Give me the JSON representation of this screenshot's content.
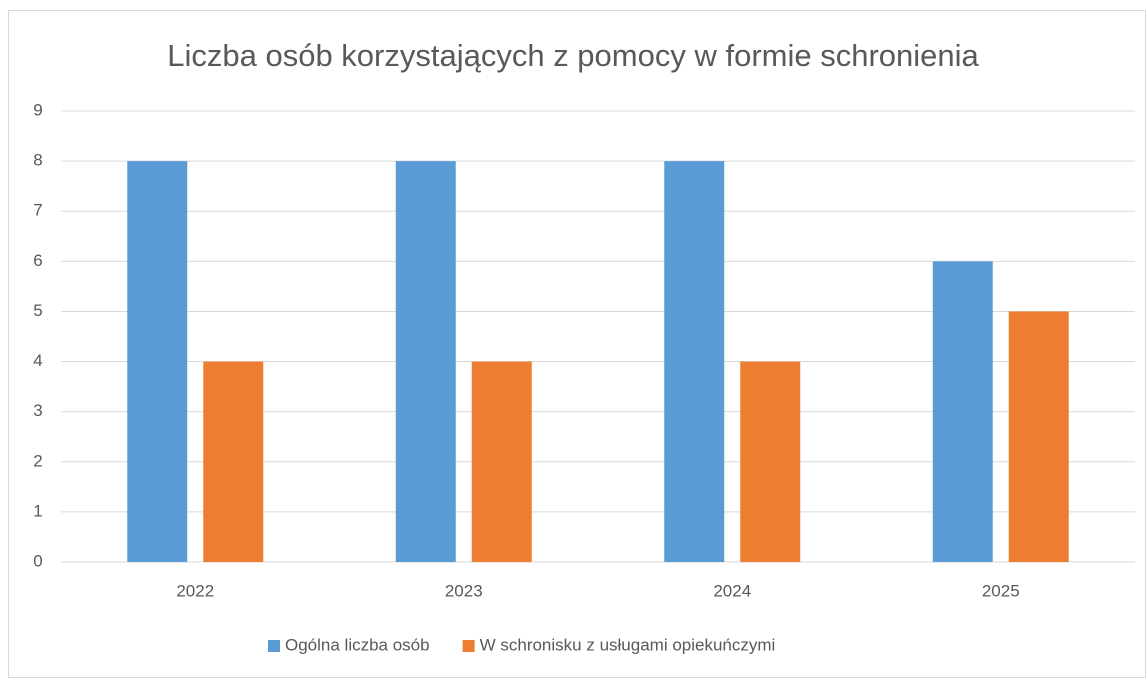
{
  "chart_data": {
    "type": "bar",
    "title": "Liczba osób korzystających z pomocy w formie schronienia",
    "categories": [
      "2022",
      "2023",
      "2024",
      "2025"
    ],
    "series": [
      {
        "name": "Ogólna liczba osób",
        "color": "#5b9bd5",
        "values": [
          8,
          8,
          8,
          6
        ]
      },
      {
        "name": "W schronisku z usługami opiekuńczymi",
        "color": "#ed7d31",
        "values": [
          4,
          4,
          4,
          5
        ]
      }
    ],
    "ylim": [
      0,
      9
    ],
    "yticks": [
      0,
      1,
      2,
      3,
      4,
      5,
      6,
      7,
      8,
      9
    ],
    "grid": true,
    "legend": "bottom"
  }
}
